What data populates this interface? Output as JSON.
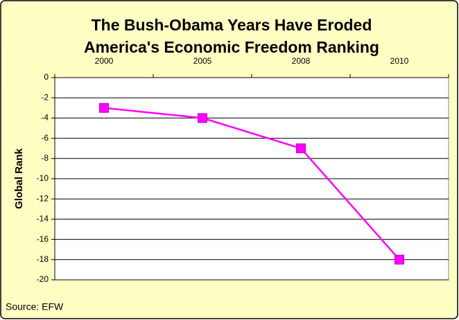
{
  "chart_data": {
    "type": "line",
    "title": [
      "The Bush-Obama Years Have Eroded",
      "America's Economic Freedom Ranking"
    ],
    "y_label": "Global Rank",
    "source": "Source: EFW",
    "categories": [
      "2000",
      "2005",
      "2008",
      "2010"
    ],
    "series": [
      {
        "name": "Global Rank",
        "color": "#ff00ff",
        "values": [
          -3,
          -4,
          -7,
          -18
        ]
      }
    ],
    "ylim": [
      -20,
      0
    ],
    "yticks": [
      0,
      -2,
      -4,
      -6,
      -8,
      -10,
      -12,
      -14,
      -16,
      -18,
      -20
    ],
    "grid": true
  }
}
